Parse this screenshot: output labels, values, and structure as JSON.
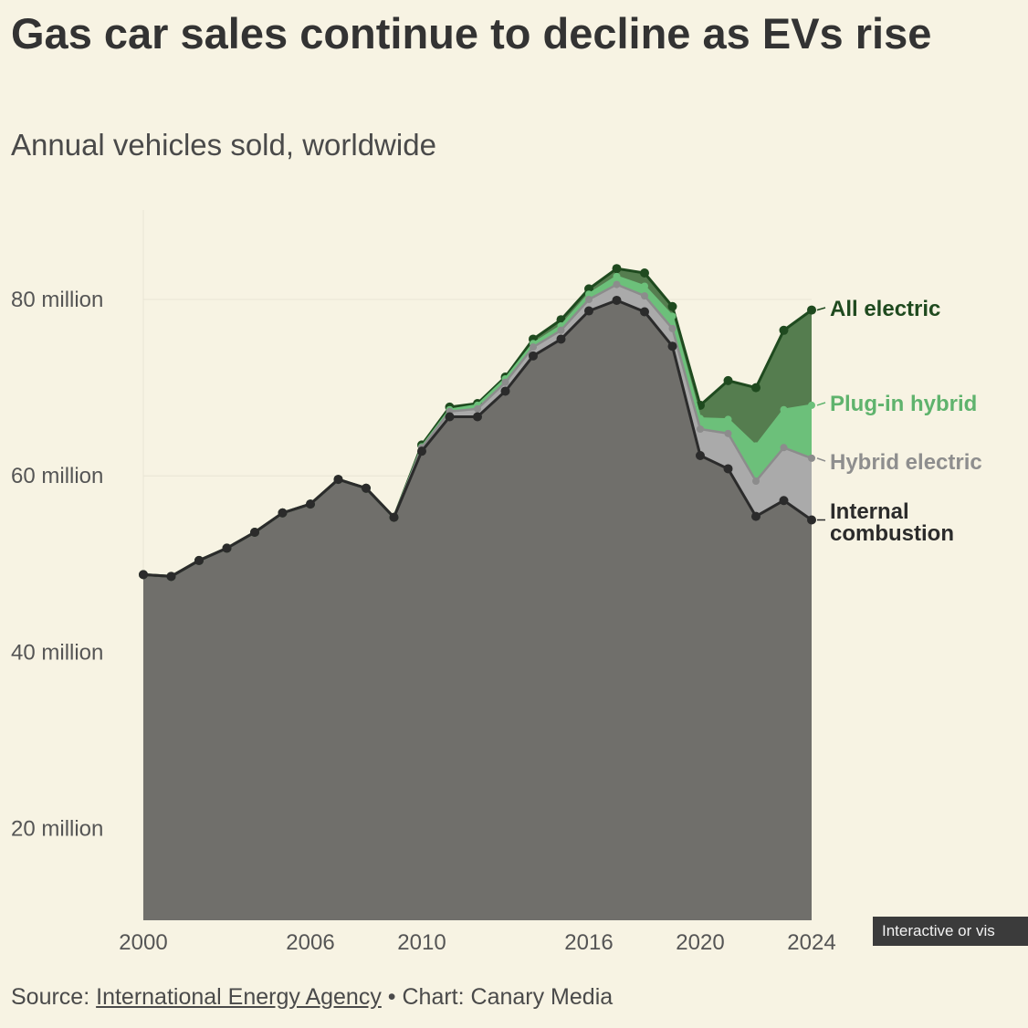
{
  "title": "Gas car sales continue to decline as EVs rise",
  "subtitle": "Annual vehicles sold, worldwide",
  "badge": "Interactive or vis",
  "source": {
    "prefix": "Source:",
    "link": "International Energy Agency",
    "suffix": "• Chart: Canary Media"
  },
  "colors": {
    "background": "#f7f3e3",
    "ice": "#706f6b",
    "ice_line": "#2b2b2b",
    "hybrid": "#aaaaaa",
    "plugin": "#6cc07a",
    "electric": "#557d4f",
    "electric_line": "#1f4a1f"
  },
  "chart_data": {
    "type": "area",
    "stacked": true,
    "title": "Gas car sales continue to decline as EVs rise",
    "subtitle": "Annual vehicles sold, worldwide",
    "unit": "million",
    "x": [
      2000,
      2001,
      2002,
      2003,
      2004,
      2005,
      2006,
      2007,
      2008,
      2009,
      2010,
      2011,
      2012,
      2013,
      2014,
      2015,
      2016,
      2017,
      2018,
      2019,
      2020,
      2021,
      2022,
      2023,
      2024
    ],
    "x_ticks": [
      2000,
      2006,
      2010,
      2016,
      2020,
      2024
    ],
    "y_ticks": [
      20,
      40,
      60,
      80
    ],
    "y_tick_labels": [
      "20 million",
      "40 million",
      "60 million",
      "80 million"
    ],
    "ylim": [
      10,
      90
    ],
    "series": [
      {
        "name": "Internal combustion",
        "label": "Internal\ncombustion",
        "cumulative": [
          48.8,
          48.6,
          50.4,
          51.8,
          53.6,
          55.8,
          56.8,
          59.6,
          58.6,
          55.3,
          62.8,
          66.7,
          66.7,
          69.6,
          73.6,
          75.5,
          78.7,
          79.9,
          78.6,
          74.7,
          62.3,
          60.8,
          55.4,
          57.2,
          55.0
        ]
      },
      {
        "name": "Hybrid electric",
        "label": "Hybrid electric",
        "cumulative": [
          48.8,
          48.6,
          50.4,
          51.8,
          53.6,
          55.8,
          56.8,
          59.6,
          58.6,
          55.3,
          63.2,
          67.3,
          67.6,
          70.6,
          74.6,
          76.5,
          80.0,
          81.7,
          80.4,
          76.7,
          65.3,
          64.8,
          59.4,
          63.2,
          62.0
        ]
      },
      {
        "name": "Plug-in hybrid",
        "label": "Plug-in hybrid",
        "cumulative": [
          48.8,
          48.6,
          50.4,
          51.8,
          53.6,
          55.8,
          56.8,
          59.6,
          58.6,
          55.3,
          63.3,
          67.5,
          68.0,
          71.0,
          75.0,
          77.0,
          80.6,
          82.6,
          81.5,
          78.1,
          66.5,
          66.4,
          63.4,
          67.5,
          68.0
        ]
      },
      {
        "name": "All electric",
        "label": "All electric",
        "cumulative": [
          48.8,
          48.6,
          50.4,
          51.8,
          53.6,
          55.8,
          56.8,
          59.6,
          58.6,
          55.3,
          63.5,
          67.8,
          68.2,
          71.2,
          75.5,
          77.7,
          81.2,
          83.5,
          83.0,
          79.2,
          68.0,
          70.8,
          70.0,
          76.5,
          78.8
        ]
      }
    ]
  }
}
